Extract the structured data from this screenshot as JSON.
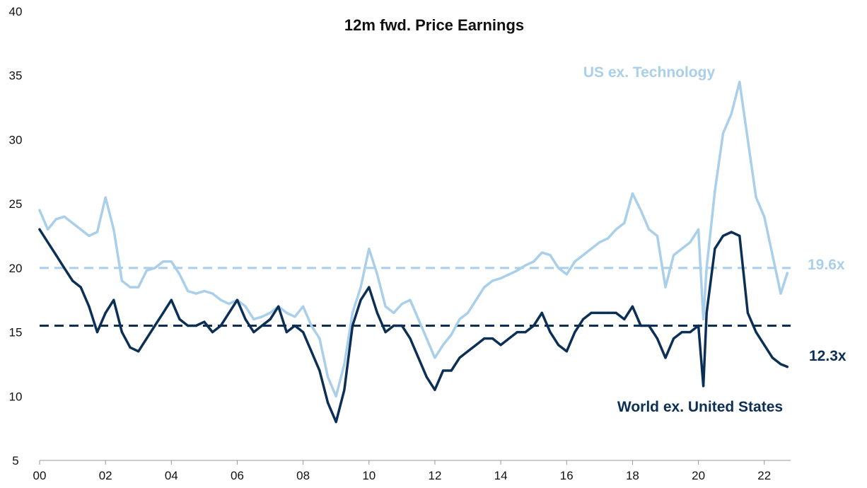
{
  "chart_data": {
    "type": "line",
    "title": "12m fwd. Price Earnings",
    "xlabel": "",
    "ylabel": "",
    "x_ticks": [
      "00",
      "02",
      "04",
      "06",
      "08",
      "10",
      "12",
      "14",
      "16",
      "18",
      "20",
      "22"
    ],
    "y_ticks": [
      5,
      10,
      15,
      20,
      25,
      30,
      35,
      40
    ],
    "xlim": [
      2000.0,
      2022.8
    ],
    "ylim": [
      5,
      40
    ],
    "grid": false,
    "colors": {
      "us_ex_tech": "#a9cfea",
      "world_ex_us": "#0c2f55",
      "axis": "#999999"
    },
    "x": [
      2000.0,
      2000.25,
      2000.5,
      2000.75,
      2001.0,
      2001.25,
      2001.5,
      2001.75,
      2002.0,
      2002.25,
      2002.5,
      2002.75,
      2003.0,
      2003.25,
      2003.5,
      2003.75,
      2004.0,
      2004.25,
      2004.5,
      2004.75,
      2005.0,
      2005.25,
      2005.5,
      2005.75,
      2006.0,
      2006.25,
      2006.5,
      2006.75,
      2007.0,
      2007.25,
      2007.5,
      2007.75,
      2008.0,
      2008.25,
      2008.5,
      2008.75,
      2009.0,
      2009.25,
      2009.5,
      2009.75,
      2010.0,
      2010.25,
      2010.5,
      2010.75,
      2011.0,
      2011.25,
      2011.5,
      2011.75,
      2012.0,
      2012.25,
      2012.5,
      2012.75,
      2013.0,
      2013.25,
      2013.5,
      2013.75,
      2014.0,
      2014.25,
      2014.5,
      2014.75,
      2015.0,
      2015.25,
      2015.5,
      2015.75,
      2016.0,
      2016.25,
      2016.5,
      2016.75,
      2017.0,
      2017.25,
      2017.5,
      2017.75,
      2018.0,
      2018.25,
      2018.5,
      2018.75,
      2019.0,
      2019.25,
      2019.5,
      2019.75,
      2020.0,
      2020.15,
      2020.25,
      2020.5,
      2020.75,
      2021.0,
      2021.25,
      2021.5,
      2021.75,
      2022.0,
      2022.25,
      2022.5,
      2022.7
    ],
    "series": [
      {
        "name": "US ex. Technology",
        "key": "us_ex_tech",
        "end_label": "19.6x",
        "average": 20.0,
        "values": [
          24.5,
          23.0,
          23.8,
          24.0,
          23.5,
          23.0,
          22.5,
          22.8,
          25.5,
          23.0,
          19.0,
          18.5,
          18.5,
          19.8,
          20.0,
          20.5,
          20.5,
          19.5,
          18.2,
          18.0,
          18.2,
          18.0,
          17.5,
          17.2,
          17.5,
          17.0,
          16.0,
          16.2,
          16.5,
          17.0,
          16.5,
          16.2,
          17.0,
          15.5,
          14.5,
          11.5,
          10.0,
          12.5,
          16.5,
          18.5,
          21.5,
          19.5,
          17.0,
          16.5,
          17.2,
          17.5,
          16.0,
          14.5,
          13.0,
          14.0,
          14.8,
          16.0,
          16.5,
          17.5,
          18.5,
          19.0,
          19.2,
          19.5,
          19.8,
          20.2,
          20.5,
          21.2,
          21.0,
          20.0,
          19.5,
          20.5,
          21.0,
          21.5,
          22.0,
          22.3,
          23.0,
          23.5,
          25.8,
          24.5,
          23.0,
          22.5,
          18.5,
          21.0,
          21.5,
          22.0,
          23.0,
          16.0,
          20.0,
          26.0,
          30.5,
          32.0,
          34.5,
          30.0,
          25.5,
          24.0,
          21.0,
          18.0,
          19.6
        ]
      },
      {
        "name": "World ex. United States",
        "key": "world_ex_us",
        "end_label": "12.3x",
        "average": 15.5,
        "values": [
          23.0,
          22.0,
          21.0,
          20.0,
          19.0,
          18.5,
          17.0,
          15.0,
          16.5,
          17.5,
          15.0,
          13.8,
          13.5,
          14.5,
          15.5,
          16.5,
          17.5,
          16.0,
          15.5,
          15.5,
          15.8,
          15.0,
          15.5,
          16.5,
          17.5,
          16.0,
          15.0,
          15.5,
          16.0,
          17.0,
          15.0,
          15.5,
          15.0,
          13.5,
          12.0,
          9.5,
          8.0,
          10.5,
          15.5,
          17.5,
          18.5,
          16.5,
          15.0,
          15.5,
          15.5,
          14.5,
          13.0,
          11.5,
          10.5,
          12.0,
          12.0,
          13.0,
          13.5,
          14.0,
          14.5,
          14.5,
          14.0,
          14.5,
          15.0,
          15.0,
          15.5,
          16.5,
          15.0,
          14.0,
          13.5,
          15.0,
          16.0,
          16.5,
          16.5,
          16.5,
          16.5,
          16.0,
          17.0,
          15.5,
          15.5,
          14.5,
          13.0,
          14.5,
          15.0,
          15.0,
          15.5,
          10.8,
          16.5,
          21.5,
          22.5,
          22.8,
          22.5,
          16.5,
          15.0,
          14.0,
          13.0,
          12.5,
          12.3
        ]
      }
    ],
    "reference_lines": [
      {
        "series": "us_ex_tech",
        "value": 20.0
      },
      {
        "series": "world_ex_us",
        "value": 15.5
      }
    ]
  }
}
